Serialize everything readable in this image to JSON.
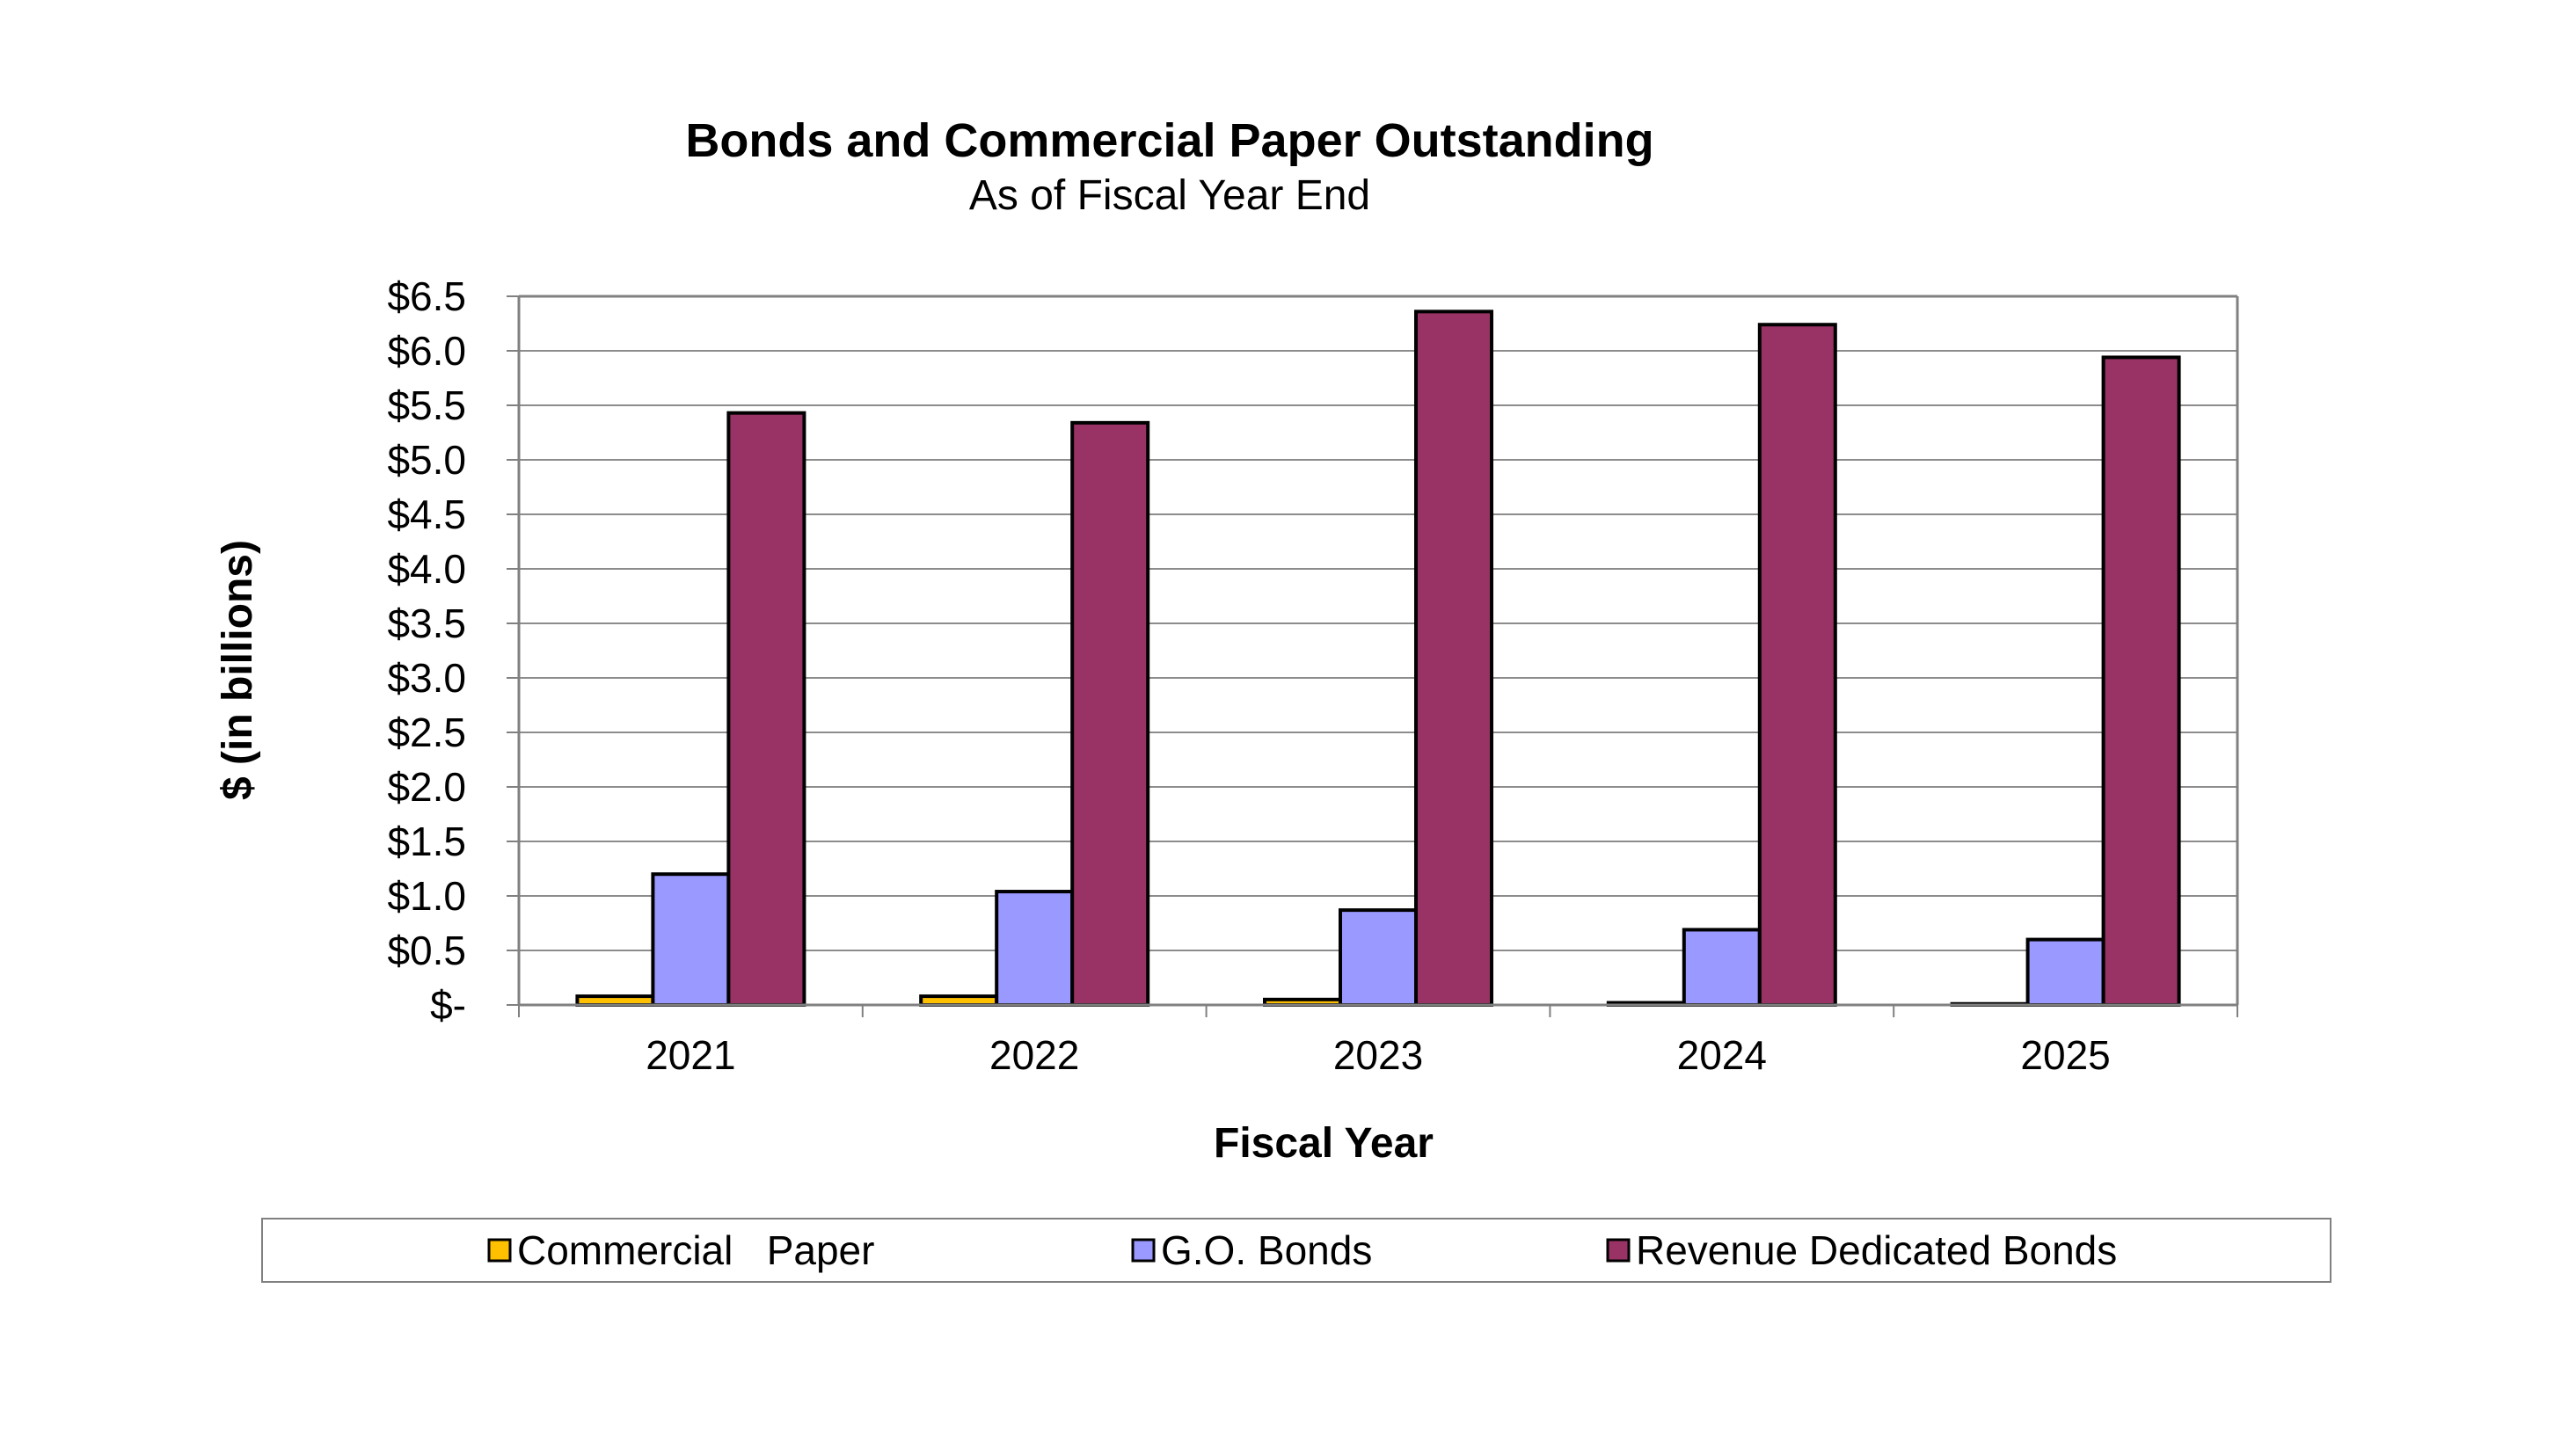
{
  "chart_data": {
    "type": "bar",
    "title": "Bonds and Commercial Paper Outstanding",
    "subtitle": "As of Fiscal Year End",
    "xlabel": "Fiscal Year",
    "ylabel": "$ (in billions)",
    "categories": [
      "2021",
      "2022",
      "2023",
      "2024",
      "2025"
    ],
    "series": [
      {
        "name": "Commercial   Paper",
        "color": "#FFC000",
        "values": [
          0.08,
          0.08,
          0.05,
          0.02,
          0.01
        ]
      },
      {
        "name": "G.O. Bonds",
        "color": "#9999FF",
        "values": [
          1.2,
          1.04,
          0.87,
          0.69,
          0.6
        ]
      },
      {
        "name": "Revenue Dedicated Bonds",
        "color": "#993366",
        "values": [
          5.43,
          5.34,
          6.36,
          6.24,
          5.94
        ]
      }
    ],
    "ylim": [
      0,
      6.5
    ],
    "yticks": [
      0,
      0.5,
      1.0,
      1.5,
      2.0,
      2.5,
      3.0,
      3.5,
      4.0,
      4.5,
      5.0,
      5.5,
      6.0,
      6.5
    ],
    "ytick_labels": [
      "$-",
      "$0.5",
      "$1.0",
      "$1.5",
      "$2.0",
      "$2.5",
      "$3.0",
      "$3.5",
      "$4.0",
      "$4.5",
      "$5.0",
      "$5.5",
      "$6.0",
      "$6.5"
    ],
    "grid": true,
    "legend_position": "bottom"
  }
}
